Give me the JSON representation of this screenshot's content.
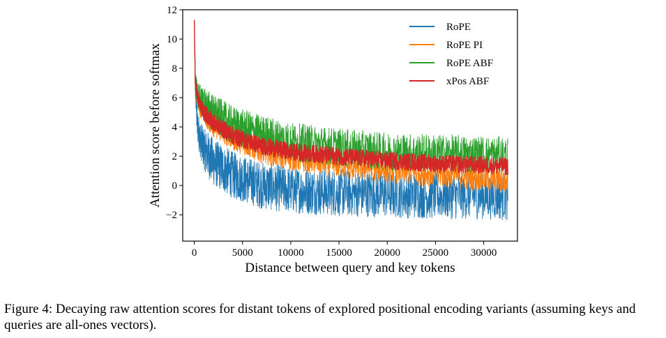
{
  "chart_data": {
    "type": "line",
    "title": "",
    "xlabel": "Distance between query and key tokens",
    "ylabel": "Attention score before softmax",
    "xlim": [
      -1200,
      33500
    ],
    "ylim": [
      -3.8,
      12
    ],
    "xticks": [
      0,
      5000,
      10000,
      15000,
      20000,
      25000,
      30000
    ],
    "xtick_labels": [
      "0",
      "5000",
      "10000",
      "15000",
      "20000",
      "25000",
      "30000"
    ],
    "yticks": [
      -2,
      0,
      2,
      4,
      6,
      8,
      10,
      12
    ],
    "ytick_labels": [
      "−2",
      "0",
      "2",
      "4",
      "6",
      "8",
      "10",
      "12"
    ],
    "legend_position": "top-right",
    "grid": false,
    "series": [
      {
        "name": "RoPE",
        "color": "#1f77b4",
        "trend_x": [
          0,
          100,
          300,
          600,
          1000,
          2000,
          4000,
          7000,
          10000,
          15000,
          20000,
          25000,
          30000,
          32500
        ],
        "trend_y": [
          11.3,
          7.0,
          4.2,
          3.2,
          2.5,
          1.6,
          0.7,
          0.0,
          -0.3,
          -0.5,
          -0.6,
          -0.7,
          -0.7,
          -0.8
        ],
        "osc_amplitude": 1.6
      },
      {
        "name": "RoPE PI",
        "color": "#ff7f0e",
        "trend_x": [
          0,
          100,
          300,
          600,
          1000,
          2000,
          4000,
          7000,
          10000,
          15000,
          20000,
          25000,
          30000,
          32500
        ],
        "trend_y": [
          11.3,
          7.2,
          6.0,
          5.4,
          5.0,
          4.2,
          3.3,
          2.4,
          1.9,
          1.4,
          1.1,
          0.8,
          0.5,
          0.3
        ],
        "osc_amplitude": 0.9
      },
      {
        "name": "RoPE ABF",
        "color": "#2ca02c",
        "trend_x": [
          0,
          100,
          300,
          600,
          1000,
          2000,
          4000,
          7000,
          10000,
          15000,
          20000,
          25000,
          30000,
          32500
        ],
        "trend_y": [
          11.3,
          7.0,
          6.3,
          5.9,
          5.5,
          4.9,
          4.1,
          3.5,
          3.0,
          2.6,
          2.3,
          2.2,
          2.1,
          2.0
        ],
        "osc_amplitude": 1.3
      },
      {
        "name": "xPos ABF",
        "color": "#d62728",
        "trend_x": [
          0,
          100,
          300,
          600,
          1000,
          2000,
          4000,
          7000,
          10000,
          15000,
          20000,
          25000,
          30000,
          32500
        ],
        "trend_y": [
          11.3,
          7.1,
          6.2,
          5.5,
          5.0,
          4.3,
          3.4,
          2.7,
          2.3,
          2.0,
          1.7,
          1.5,
          1.4,
          1.3
        ],
        "osc_amplitude": 0.6
      }
    ]
  },
  "caption": {
    "text": "Figure 4: Decaying raw attention scores for distant tokens of explored positional encoding variants (assuming keys and queries are all-ones vectors)."
  }
}
